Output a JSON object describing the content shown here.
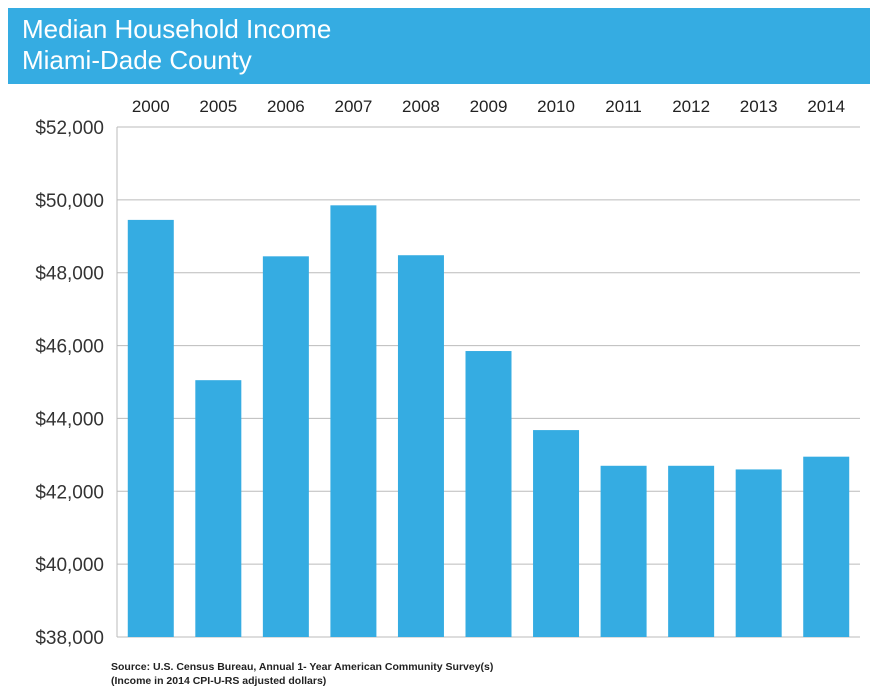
{
  "header": {
    "title_line1": "Median Household Income",
    "title_line2": "Miami-Dade County",
    "background": "#35ace2"
  },
  "chart_data": {
    "type": "bar",
    "categories": [
      "2000",
      "2005",
      "2006",
      "2007",
      "2008",
      "2009",
      "2010",
      "2011",
      "2012",
      "2013",
      "2014"
    ],
    "values": [
      49450,
      45050,
      48450,
      49850,
      48480,
      45850,
      43680,
      42700,
      42700,
      42600,
      42950
    ],
    "ylim": [
      38000,
      52000
    ],
    "yticks": [
      38000,
      40000,
      42000,
      44000,
      46000,
      48000,
      50000,
      52000
    ],
    "ytick_labels": [
      "$38,000",
      "$40,000",
      "$42,000",
      "$44,000",
      "$46,000",
      "$48,000",
      "$50,000",
      "$52,000"
    ],
    "category_labels_position": "top",
    "grid": true,
    "bar_color": "#35ace2",
    "grid_color": "#bbbbbb"
  },
  "footer": {
    "source_line1": "Source: U.S. Census Bureau, Annual 1- Year American Community Survey(s)",
    "source_line2": "(Income in 2014 CPI-U-RS adjusted dollars)"
  }
}
